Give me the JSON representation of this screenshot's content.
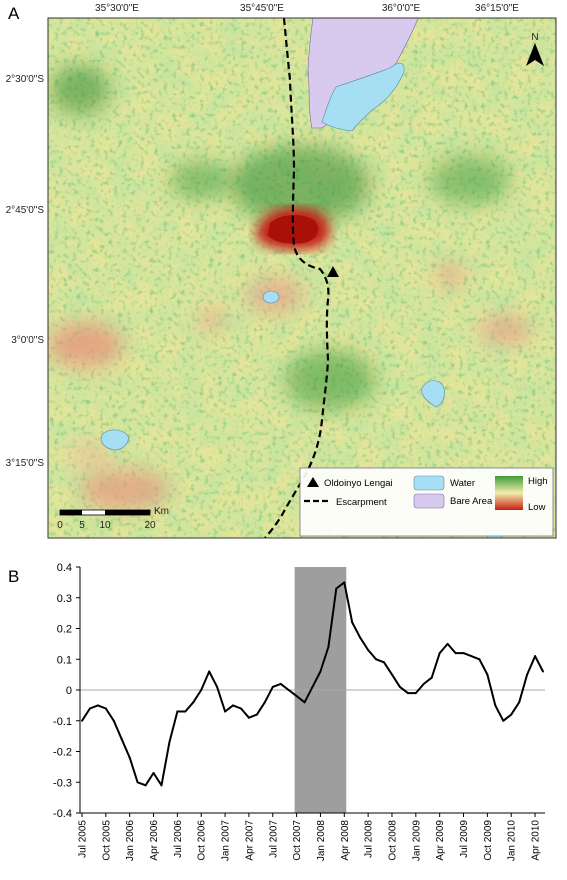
{
  "panels": {
    "a_label": "A",
    "b_label": "B"
  },
  "map": {
    "lon_labels": [
      "35°30'0\"E",
      "35°45'0\"E",
      "36°0'0\"E",
      "36°15'0\"E"
    ],
    "lat_labels": [
      "2°30'0\"S",
      "2°45'0\"S",
      "3°0'0\"S",
      "3°15'0\"S"
    ],
    "north_label": "N",
    "legend": {
      "volcano": "Oldoinyo Lengai",
      "escarpment": "Escarpment",
      "water": "Water",
      "bare_area": "Bare Area",
      "high": "High",
      "low": "Low"
    },
    "scale": {
      "ticks": [
        "0",
        "5",
        "10",
        "20"
      ],
      "unit": "Km"
    },
    "colors": {
      "high": "#3f9a3a",
      "mid": "#f2edaa",
      "low": "#c41f12",
      "water": "#a6def4",
      "bare_area": "#d8c9ee"
    }
  },
  "chart_data": {
    "type": "line",
    "title": "",
    "xlabel": "",
    "ylabel": "",
    "ylim": [
      -0.4,
      0.4
    ],
    "yticks": [
      -0.4,
      -0.3,
      -0.2,
      -0.1,
      0,
      0.1,
      0.2,
      0.3,
      0.4
    ],
    "ytick_labels": [
      "-0.4",
      "-0.3",
      "-0.2",
      "-0.1",
      "0",
      "0.1",
      "0.2",
      "0.3",
      "0.4"
    ],
    "xtick_labels": [
      "Jul 2005",
      "Oct 2005",
      "Jan 2006",
      "Apr 2006",
      "Jul 2006",
      "Oct 2006",
      "Jan 2007",
      "Apr 2007",
      "Jul 2007",
      "Oct 2007",
      "Jan 2008",
      "Apr 2008",
      "Jul 2008",
      "Oct 2008",
      "Jan 2009",
      "Apr 2009",
      "Jul 2009",
      "Oct 2009",
      "Jan 2010",
      "Apr 2010"
    ],
    "x": [
      "Jul 2005",
      "Aug 2005",
      "Sep 2005",
      "Oct 2005",
      "Nov 2005",
      "Dec 2005",
      "Jan 2006",
      "Feb 2006",
      "Mar 2006",
      "Apr 2006",
      "May 2006",
      "Jun 2006",
      "Jul 2006",
      "Aug 2006",
      "Sep 2006",
      "Oct 2006",
      "Nov 2006",
      "Dec 2006",
      "Jan 2007",
      "Feb 2007",
      "Mar 2007",
      "Apr 2007",
      "May 2007",
      "Jun 2007",
      "Jul 2007",
      "Aug 2007",
      "Sep 2007",
      "Oct 2007",
      "Nov 2007",
      "Dec 2007",
      "Jan 2008",
      "Feb 2008",
      "Mar 2008",
      "Apr 2008",
      "May 2008",
      "Jun 2008",
      "Jul 2008",
      "Aug 2008",
      "Sep 2008",
      "Oct 2008",
      "Nov 2008",
      "Dec 2008",
      "Jan 2009",
      "Feb 2009",
      "Mar 2009",
      "Apr 2009",
      "May 2009",
      "Jun 2009",
      "Jul 2009",
      "Aug 2009",
      "Sep 2009",
      "Oct 2009",
      "Nov 2009",
      "Dec 2009",
      "Jan 2010",
      "Feb 2010",
      "Mar 2010",
      "Apr 2010",
      "May 2010"
    ],
    "series": [
      {
        "values": [
          -0.1,
          -0.06,
          -0.05,
          -0.06,
          -0.1,
          -0.16,
          -0.22,
          -0.3,
          -0.31,
          -0.27,
          -0.31,
          -0.17,
          -0.07,
          -0.07,
          -0.04,
          0.0,
          0.06,
          0.01,
          -0.07,
          -0.05,
          -0.06,
          -0.09,
          -0.08,
          -0.04,
          0.01,
          0.02,
          0.0,
          -0.02,
          -0.04,
          0.01,
          0.06,
          0.14,
          0.33,
          0.35,
          0.22,
          0.17,
          0.13,
          0.1,
          0.09,
          0.05,
          0.01,
          -0.01,
          -0.01,
          0.02,
          0.04,
          0.12,
          0.15,
          0.12,
          0.12,
          0.11,
          0.1,
          0.05,
          -0.05,
          -0.1,
          -0.08,
          -0.04,
          0.05,
          0.11,
          0.06
        ]
      }
    ],
    "highlight": {
      "from": "Oct 2007",
      "to": "Apr 2008",
      "color": "#9e9e9e"
    },
    "zero_line": true,
    "grid": false
  }
}
